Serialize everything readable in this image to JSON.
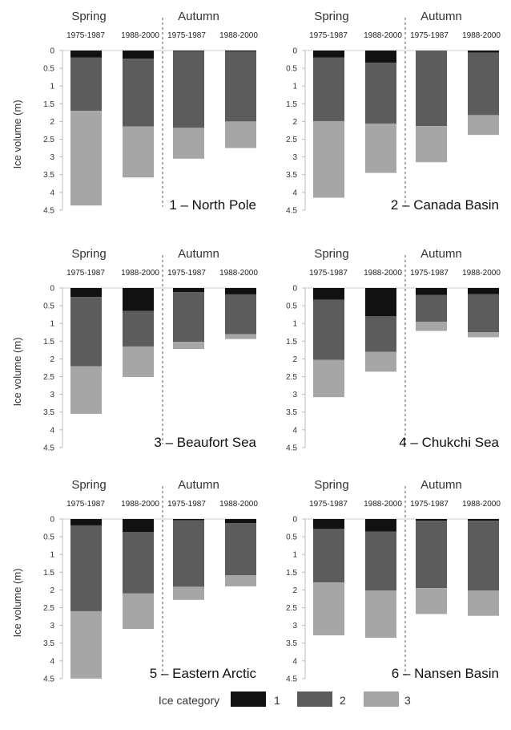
{
  "chart_data": {
    "type": "stacked-bar",
    "ylabel": "Ice volume (m)",
    "yticks": [
      "0",
      "0.5",
      "1",
      "1.5",
      "2",
      "2.5",
      "3",
      "3.5",
      "4",
      "4.5"
    ],
    "ylim": [
      0,
      4.5
    ],
    "y_inverted": true,
    "seasons": [
      "Spring",
      "Autumn"
    ],
    "periods": [
      "1975-1987",
      "1988-2000"
    ],
    "legend": {
      "title": "Ice category",
      "items": [
        {
          "name": "1",
          "color": "#111111"
        },
        {
          "name": "2",
          "color": "#5c5c5c"
        },
        {
          "name": "3",
          "color": "#a6a6a6"
        }
      ],
      "placement": "bottom-center"
    },
    "panels": [
      {
        "title": "1 – North Pole",
        "bars": [
          {
            "season": "Spring",
            "period": "1975-1987",
            "cat1": 0.2,
            "cat2": 1.5,
            "cat3": 2.67
          },
          {
            "season": "Spring",
            "period": "1988-2000",
            "cat1": 0.23,
            "cat2": 1.91,
            "cat3": 1.44
          },
          {
            "season": "Autumn",
            "period": "1975-1987",
            "cat1": 0.02,
            "cat2": 2.16,
            "cat3": 0.87
          },
          {
            "season": "Autumn",
            "period": "1988-2000",
            "cat1": 0.03,
            "cat2": 1.97,
            "cat3": 0.75
          }
        ]
      },
      {
        "title": "2 – Canada Basin",
        "bars": [
          {
            "season": "Spring",
            "period": "1975-1987",
            "cat1": 0.2,
            "cat2": 1.79,
            "cat3": 2.16
          },
          {
            "season": "Spring",
            "period": "1988-2000",
            "cat1": 0.34,
            "cat2": 1.72,
            "cat3": 1.39
          },
          {
            "season": "Autumn",
            "period": "1975-1987",
            "cat1": 0.0,
            "cat2": 2.13,
            "cat3": 1.02
          },
          {
            "season": "Autumn",
            "period": "1988-2000",
            "cat1": 0.06,
            "cat2": 1.76,
            "cat3": 0.56
          }
        ]
      },
      {
        "title": "3 – Beaufort Sea",
        "bars": [
          {
            "season": "Spring",
            "period": "1975-1987",
            "cat1": 0.25,
            "cat2": 1.96,
            "cat3": 1.34
          },
          {
            "season": "Spring",
            "period": "1988-2000",
            "cat1": 0.65,
            "cat2": 1.0,
            "cat3": 0.86
          },
          {
            "season": "Autumn",
            "period": "1975-1987",
            "cat1": 0.12,
            "cat2": 1.4,
            "cat3": 0.2
          },
          {
            "season": "Autumn",
            "period": "1988-2000",
            "cat1": 0.18,
            "cat2": 1.12,
            "cat3": 0.14
          }
        ]
      },
      {
        "title": "4 – Chukchi Sea",
        "bars": [
          {
            "season": "Spring",
            "period": "1975-1987",
            "cat1": 0.33,
            "cat2": 1.7,
            "cat3": 1.05
          },
          {
            "season": "Spring",
            "period": "1988-2000",
            "cat1": 0.8,
            "cat2": 1.0,
            "cat3": 0.56
          },
          {
            "season": "Autumn",
            "period": "1975-1987",
            "cat1": 0.2,
            "cat2": 0.75,
            "cat3": 0.26
          },
          {
            "season": "Autumn",
            "period": "1988-2000",
            "cat1": 0.17,
            "cat2": 1.08,
            "cat3": 0.14
          }
        ]
      },
      {
        "title": "5 – Eastern Arctic",
        "bars": [
          {
            "season": "Spring",
            "period": "1975-1987",
            "cat1": 0.18,
            "cat2": 2.42,
            "cat3": 1.9
          },
          {
            "season": "Spring",
            "period": "1988-2000",
            "cat1": 0.37,
            "cat2": 1.73,
            "cat3": 1.0
          },
          {
            "season": "Autumn",
            "period": "1975-1987",
            "cat1": 0.04,
            "cat2": 1.87,
            "cat3": 0.37
          },
          {
            "season": "Autumn",
            "period": "1988-2000",
            "cat1": 0.12,
            "cat2": 1.47,
            "cat3": 0.31
          }
        ]
      },
      {
        "title": "6 – Nansen Basin",
        "bars": [
          {
            "season": "Spring",
            "period": "1975-1987",
            "cat1": 0.28,
            "cat2": 1.51,
            "cat3": 1.49
          },
          {
            "season": "Spring",
            "period": "1988-2000",
            "cat1": 0.35,
            "cat2": 1.67,
            "cat3": 1.33
          },
          {
            "season": "Autumn",
            "period": "1975-1987",
            "cat1": 0.05,
            "cat2": 1.9,
            "cat3": 0.73
          },
          {
            "season": "Autumn",
            "period": "1988-2000",
            "cat1": 0.05,
            "cat2": 1.97,
            "cat3": 0.71
          }
        ]
      }
    ]
  }
}
